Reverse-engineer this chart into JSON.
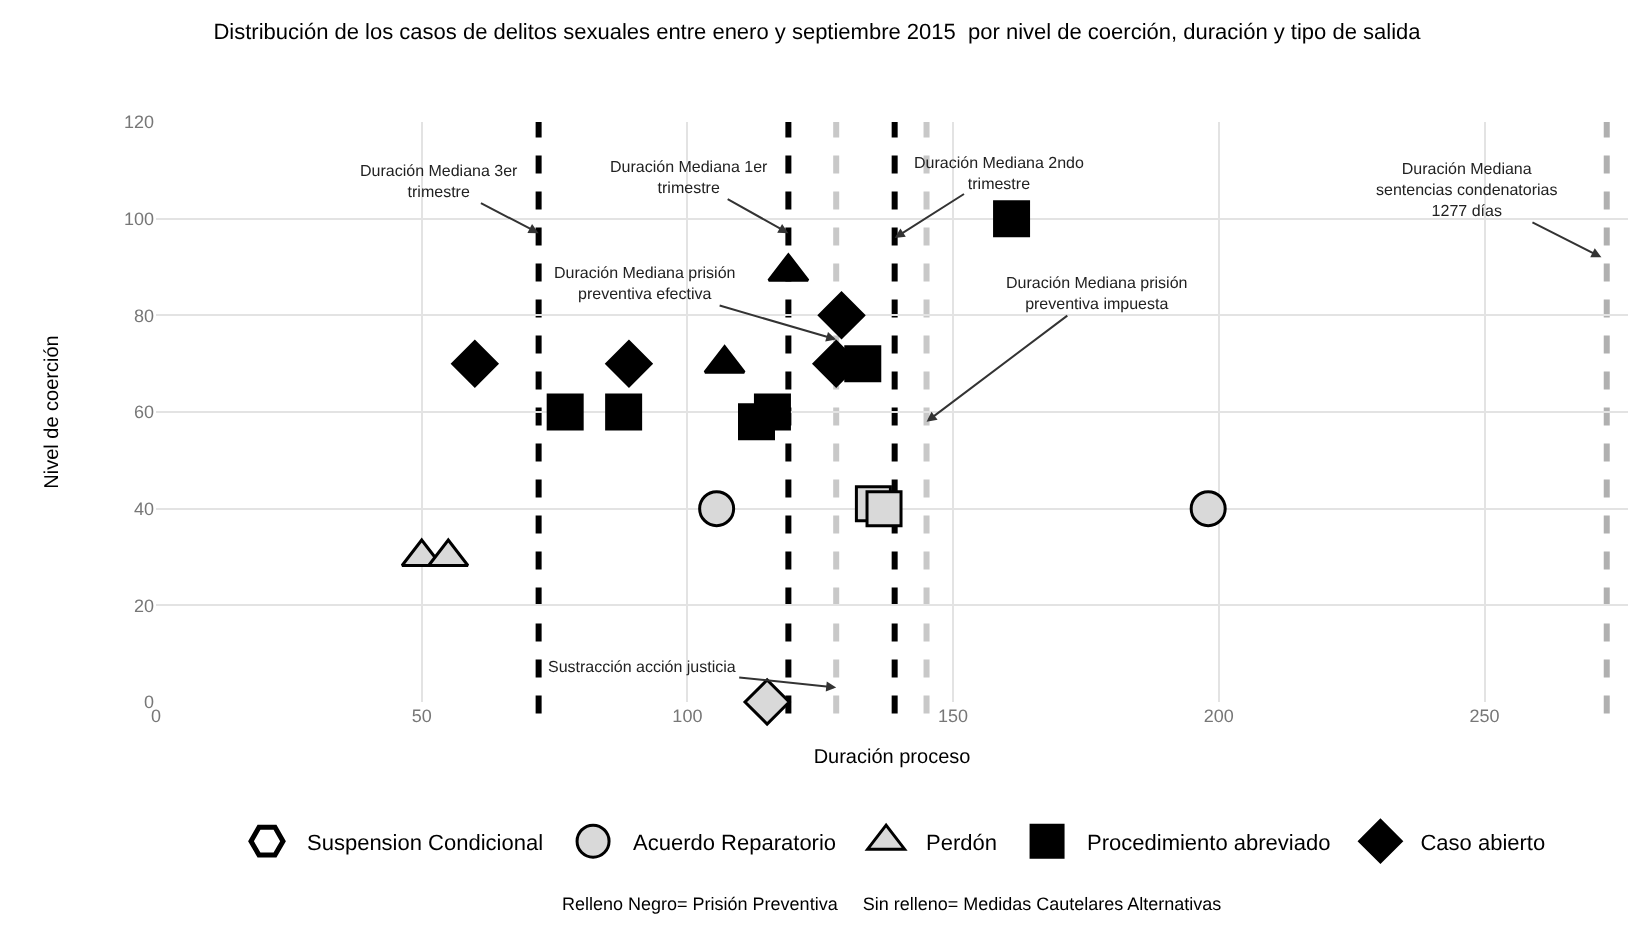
{
  "chart_data": {
    "type": "scatter",
    "title": "Distribución de los casos de delitos sexuales entre enero y septiembre 2015  por nivel de coerción, duración y tipo de salida",
    "xlabel": "Duración proceso",
    "ylabel": "Nivel de coerción",
    "xlim": [
      0,
      277
    ],
    "xticks": [
      0,
      50,
      100,
      150,
      200,
      250
    ],
    "ylim": [
      0,
      120
    ],
    "yticks": [
      0,
      20,
      40,
      60,
      80,
      100,
      120
    ],
    "grid": true,
    "legend": "bottom",
    "series": [
      {
        "name": "Suspension Condicional",
        "marker": "trapezoid"
      },
      {
        "name": "Acuerdo Reparatorio",
        "marker": "circle",
        "x": [
          105.5,
          198
        ],
        "values": [
          40,
          40
        ],
        "colors": [
          "#d9d9d9",
          "#d9d9d9"
        ]
      },
      {
        "name": "Perdón",
        "marker": "triangle",
        "x": [
          50,
          55,
          107,
          119
        ],
        "values": [
          30,
          30,
          70,
          89
        ],
        "colors": [
          "#d9d9d9",
          "#d9d9d9",
          "#000000",
          "#000000"
        ]
      },
      {
        "name": "Procedimiento abreviado",
        "marker": "square",
        "x": [
          77,
          88,
          113,
          116,
          133,
          161,
          135,
          137
        ],
        "values": [
          60,
          60,
          58,
          60,
          70,
          100,
          41,
          40
        ],
        "colors": [
          "#000000",
          "#000000",
          "#000000",
          "#000000",
          "#000000",
          "#000000",
          "#d9d9d9",
          "#d9d9d9"
        ]
      },
      {
        "name": "Caso abierto",
        "marker": "diamond",
        "x": [
          60,
          89,
          129,
          128,
          115
        ],
        "values": [
          70,
          70,
          80,
          70,
          0
        ],
        "colors": [
          "#000000",
          "#000000",
          "#000000",
          "#000000",
          "#d9d9d9"
        ]
      }
    ],
    "ref_lines": [
      {
        "axis": "x",
        "value": 72,
        "color": "#000000",
        "line_style": "dashed"
      },
      {
        "axis": "x",
        "value": 119,
        "color": "#000000",
        "line_style": "dashed"
      },
      {
        "axis": "x",
        "value": 139,
        "color": "#000000",
        "line_style": "dashed"
      },
      {
        "axis": "x",
        "value": 128,
        "color": "#c8c8c8",
        "line_style": "dashed"
      },
      {
        "axis": "x",
        "value": 145,
        "color": "#c8c8c8",
        "line_style": "dashed"
      },
      {
        "axis": "x",
        "value": 273,
        "color": "#b0b0b0",
        "line_style": "dashed"
      }
    ],
    "annotations": [
      {
        "text": "Duración Mediana 3er trimestre",
        "x": 72,
        "y": 97
      },
      {
        "text": "Duración Mediana 1er trimestre",
        "x": 119,
        "y": 97
      },
      {
        "text": "Duración Mediana prisión preventiva efectiva",
        "x": 128,
        "y": 75
      },
      {
        "text": "Sustracción acción justicia",
        "x": 128,
        "y": 3
      },
      {
        "text": "Duración Mediana 2ndo trimestre",
        "x": 139,
        "y": 96
      },
      {
        "text": "Duración Mediana prisión preventiva impuesta",
        "x": 145,
        "y": 58
      },
      {
        "text": "Duración Mediana sentencias condenatorias 1277 días",
        "x": 272,
        "y": 92
      },
      "Relleno Negro= Prisión Preventiva     Sin relleno= Medidas Cautelares Alternativas"
    ]
  }
}
